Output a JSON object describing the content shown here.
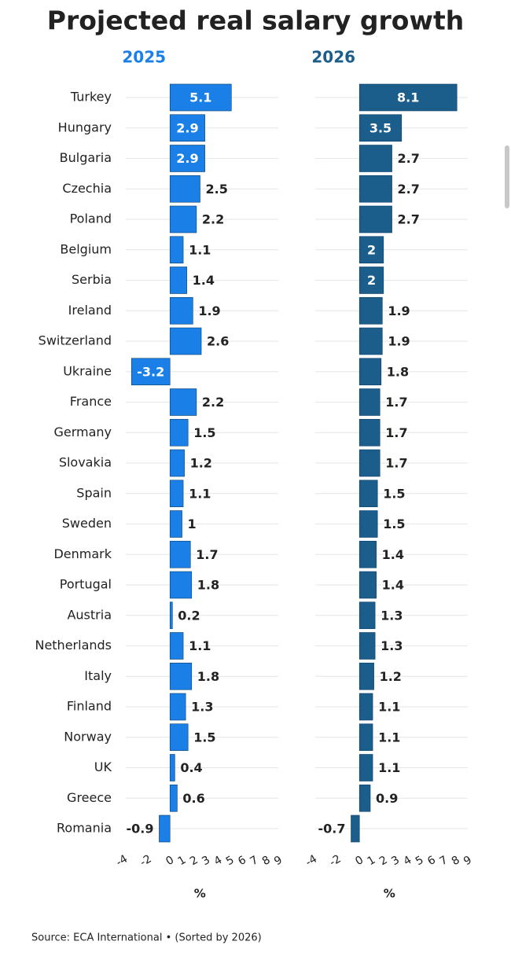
{
  "title": "Projected real salary growth",
  "source": "Source: ECA International • (Sorted by 2026)",
  "chart_data": [
    {
      "type": "bar",
      "subtitle": "2025",
      "color": "#1a80e8",
      "x_label": "%",
      "categories": [
        "Turkey",
        "Hungary",
        "Bulgaria",
        "Czechia",
        "Poland",
        "Belgium",
        "Serbia",
        "Ireland",
        "Switzerland",
        "Ukraine",
        "France",
        "Germany",
        "Slovakia",
        "Spain",
        "Sweden",
        "Denmark",
        "Portugal",
        "Austria",
        "Netherlands",
        "Italy",
        "Finland",
        "Norway",
        "UK",
        "Greece",
        "Romania"
      ],
      "values": [
        5.1,
        2.9,
        2.9,
        2.5,
        2.2,
        1.1,
        1.4,
        1.9,
        2.6,
        -3.2,
        2.2,
        1.5,
        1.2,
        1.1,
        1,
        1.7,
        1.8,
        0.2,
        1.1,
        1.8,
        1.3,
        1.5,
        0.4,
        0.6,
        -0.9
      ],
      "xlim": [
        -4,
        9
      ],
      "xticks": [
        -4,
        -2,
        0,
        1,
        2,
        3,
        4,
        5,
        6,
        7,
        8,
        9
      ]
    },
    {
      "type": "bar",
      "subtitle": "2026",
      "color": "#1b5d8b",
      "x_label": "%",
      "values": [
        8.1,
        3.5,
        2.7,
        2.7,
        2.7,
        2,
        2,
        1.9,
        1.9,
        1.8,
        1.7,
        1.7,
        1.7,
        1.5,
        1.5,
        1.4,
        1.4,
        1.3,
        1.3,
        1.2,
        1.1,
        1.1,
        1.1,
        0.9,
        -0.7
      ],
      "xlim": [
        -4,
        9
      ],
      "xticks": [
        -4,
        -2,
        0,
        1,
        2,
        3,
        4,
        5,
        6,
        7,
        8,
        9
      ]
    }
  ]
}
